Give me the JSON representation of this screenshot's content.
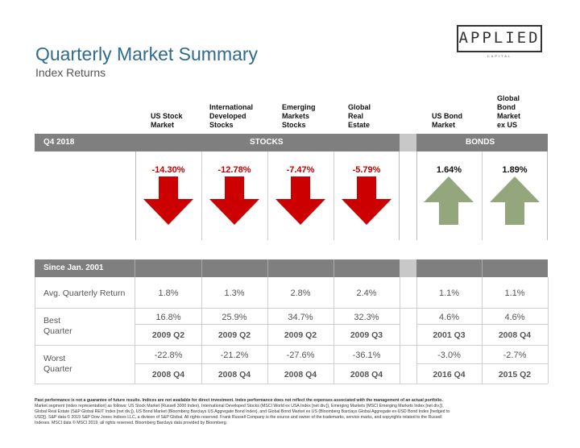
{
  "header": {
    "title": "Quarterly Market Summary",
    "subtitle": "Index Returns",
    "logo_text": "APPLIED",
    "logo_subtext": "CAPITAL"
  },
  "columns": [
    {
      "header": "US Stock\nMarket"
    },
    {
      "header": "International\nDeveloped\nStocks"
    },
    {
      "header": "Emerging\nMarkets\nStocks"
    },
    {
      "header": "Global\nReal\nEstate"
    },
    {
      "header": "US Bond\nMarket"
    },
    {
      "header": "Global\nBond\nMarket\nex US"
    }
  ],
  "quarter_bar": {
    "period_label": "Q4 2018",
    "stocks_label": "STOCKS",
    "bonds_label": "BONDS"
  },
  "quarter_returns": [
    {
      "value": "-14.30%",
      "direction": "down"
    },
    {
      "value": "-12.78%",
      "direction": "down"
    },
    {
      "value": "-7.47%",
      "direction": "down"
    },
    {
      "value": "-5.79%",
      "direction": "down"
    },
    {
      "value": "1.64%",
      "direction": "up"
    },
    {
      "value": "1.89%",
      "direction": "up"
    }
  ],
  "colors": {
    "down_arrow": "#cc0000",
    "up_arrow": "#94a77c",
    "bar_gray": "#7f7f7f",
    "title_blue": "#2f6b8e"
  },
  "since_table": {
    "header_label": "Since Jan. 2001",
    "avg_label": "Avg. Quarterly Return",
    "avg_values": [
      "1.8%",
      "1.3%",
      "2.8%",
      "2.4%",
      "1.1%",
      "1.1%"
    ],
    "best_label": "Best\nQuarter",
    "best_values": [
      "16.8%",
      "25.9%",
      "34.7%",
      "32.3%",
      "4.6%",
      "4.6%"
    ],
    "best_quarters": [
      "2009 Q2",
      "2009 Q2",
      "2009 Q2",
      "2009 Q3",
      "2001 Q3",
      "2008 Q4"
    ],
    "worst_label": "Worst\nQuarter",
    "worst_values": [
      "-22.8%",
      "-21.2%",
      "-27.6%",
      "-36.1%",
      "-3.0%",
      "-2.7%"
    ],
    "worst_quarters": [
      "2008 Q4",
      "2008 Q4",
      "2008 Q4",
      "2008 Q4",
      "2016 Q4",
      "2015 Q2"
    ]
  },
  "footer": {
    "line1": "Past performance is not a guarantee of future results. Indices are not available for direct investment. Index performance does not reflect the expenses associated with the management of an actual portfolio.",
    "line2": "Market segment (index representation) as follows: US Stock Market (Russell 3000 Index), International Developed Stocks (MSCI World ex USA Index [net div.]), Emerging Markets (MSCI Emerging Markets Index [net div.]),",
    "line3": "Global Real Estate (S&P Global REIT Index [net div.]), US Bond Market (Bloomberg Barclays US Aggregate Bond Index), and Global Bond Market ex US (Bloomberg Barclays Global Aggregate ex-USD Bond Index [hedged to",
    "line4": "USD]). S&P data © 2019 S&P Dow Jones Indices LLC, a division of S&P Global. All rights reserved. Frank Russell Company is the source and owner of the trademarks, service marks, and copyrights related to the Russell",
    "line5": "Indexes. MSCI data © MSCI 2019, all rights reserved. Bloomberg Barclays data provided by Bloomberg."
  }
}
